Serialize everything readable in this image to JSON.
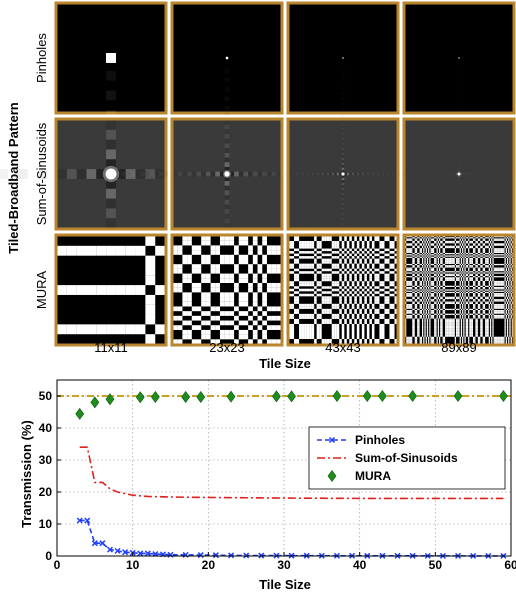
{
  "patterns": {
    "group_label": "Tiled-Broadband Pattern",
    "rows": [
      {
        "label": "Pinholes",
        "kind": "pinhole"
      },
      {
        "label": "Sum-of-Sinusoids",
        "kind": "sinusoid"
      },
      {
        "label": "MURA",
        "kind": "mura"
      }
    ],
    "columns": [
      "11x11",
      "23x23",
      "43x43",
      "89x89"
    ],
    "xlabel": "Tile Size",
    "frame_color": "#b8862e"
  },
  "chart_data": {
    "type": "line",
    "title": "",
    "xlabel": "Tile Size",
    "ylabel": "Transmission (%)",
    "xlim": [
      0,
      60
    ],
    "ylim": [
      0,
      55
    ],
    "xticks": [
      0,
      10,
      20,
      30,
      40,
      50,
      60
    ],
    "yticks": [
      0,
      10,
      20,
      30,
      40,
      50
    ],
    "grid": true,
    "legend_position": "right",
    "reference_line": {
      "y": 50,
      "color": "#c9a227"
    },
    "series": [
      {
        "name": "Pinholes",
        "color": "#1f3fff",
        "style": "dashed",
        "marker": "x",
        "x": [
          3,
          4,
          5,
          6,
          7,
          8,
          9,
          10,
          11,
          12,
          13,
          14,
          15,
          17,
          19,
          21,
          23,
          25,
          27,
          29,
          31,
          33,
          35,
          37,
          39,
          41,
          43,
          45,
          47,
          49,
          51,
          53,
          55,
          57,
          59
        ],
        "y": [
          11.1,
          11.1,
          4.0,
          4.0,
          2.0,
          1.6,
          1.2,
          1.0,
          0.8,
          0.8,
          0.6,
          0.5,
          0.4,
          0.35,
          0.3,
          0.25,
          0.2,
          0.15,
          0.14,
          0.12,
          0.1,
          0.09,
          0.08,
          0.07,
          0.07,
          0.06,
          0.05,
          0.05,
          0.05,
          0.04,
          0.04,
          0.04,
          0.03,
          0.03,
          0.03
        ]
      },
      {
        "name": "Sum-of-Sinusoids",
        "color": "#e0201c",
        "style": "dashdot",
        "marker": "none",
        "x": [
          3,
          4,
          5,
          6,
          7,
          8,
          9,
          10,
          11,
          12,
          14,
          16,
          20,
          25,
          30,
          40,
          50,
          59
        ],
        "y": [
          34,
          34,
          23,
          23,
          21,
          20,
          19.5,
          19,
          18.8,
          18.6,
          18.5,
          18.4,
          18.3,
          18.2,
          18.1,
          18,
          18,
          18
        ]
      },
      {
        "name": "MURA",
        "color": "#1e8c1e",
        "style": "none",
        "marker": "diamond",
        "x": [
          3,
          5,
          7,
          11,
          13,
          17,
          19,
          23,
          29,
          31,
          37,
          41,
          43,
          47,
          53,
          59
        ],
        "y": [
          44.4,
          48.0,
          49.0,
          49.6,
          49.7,
          49.7,
          49.7,
          49.8,
          49.9,
          49.9,
          50,
          50,
          50,
          50,
          50,
          50
        ]
      }
    ]
  }
}
